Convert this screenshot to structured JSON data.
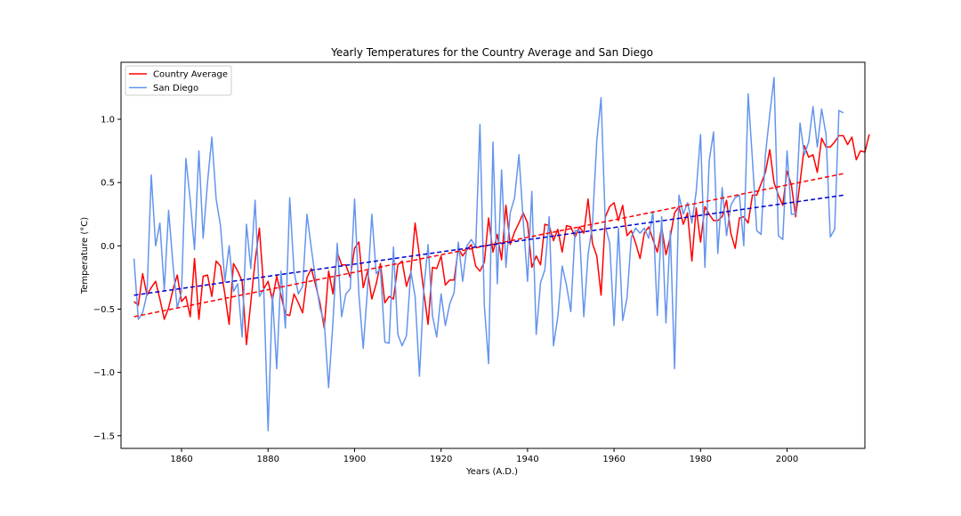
{
  "chart_data": {
    "type": "line",
    "title": "Yearly Temperatures for the Country Average and San Diego",
    "xlabel": "Years (A.D.)",
    "ylabel": "Temperature (°C)",
    "xlim": [
      1846,
      2018
    ],
    "ylim": [
      -1.6,
      1.45
    ],
    "xticks": [
      1860,
      1880,
      1900,
      1920,
      1940,
      1960,
      1980,
      2000
    ],
    "yticks": [
      -1.5,
      -1.0,
      -0.5,
      0.0,
      0.5,
      1.0
    ],
    "ytick_labels": [
      "−1.5",
      "−1.0",
      "−0.5",
      "0.0",
      "0.5",
      "1.0"
    ],
    "grid": false,
    "legend_position": "top-left",
    "x_start": 1849,
    "series": [
      {
        "name": "Country Average",
        "color": "#ff0000",
        "values": [
          -0.44,
          -0.47,
          -0.22,
          -0.39,
          -0.33,
          -0.28,
          -0.42,
          -0.58,
          -0.49,
          -0.35,
          -0.23,
          -0.44,
          -0.4,
          -0.56,
          -0.1,
          -0.58,
          -0.24,
          -0.23,
          -0.4,
          -0.12,
          -0.16,
          -0.38,
          -0.62,
          -0.14,
          -0.2,
          -0.28,
          -0.78,
          -0.45,
          -0.12,
          0.14,
          -0.34,
          -0.28,
          -0.43,
          -0.24,
          -0.39,
          -0.54,
          -0.55,
          -0.38,
          -0.45,
          -0.53,
          -0.25,
          -0.18,
          -0.31,
          -0.45,
          -0.65,
          -0.2,
          -0.38,
          -0.05,
          -0.15,
          -0.15,
          -0.25,
          -0.02,
          0.03,
          -0.33,
          -0.2,
          -0.42,
          -0.3,
          -0.14,
          -0.45,
          -0.4,
          -0.42,
          -0.15,
          -0.12,
          -0.32,
          -0.21,
          0.18,
          -0.08,
          -0.36,
          -0.62,
          -0.17,
          -0.18,
          -0.08,
          -0.31,
          -0.27,
          -0.27,
          -0.02,
          -0.08,
          -0.03,
          0.01,
          -0.16,
          -0.2,
          -0.13,
          0.22,
          -0.05,
          0.09,
          -0.11,
          0.32,
          0.01,
          0.11,
          0.18,
          0.26,
          0.18,
          -0.17,
          -0.08,
          -0.15,
          0.17,
          0.16,
          0.04,
          0.13,
          -0.05,
          0.16,
          0.15,
          0.07,
          0.15,
          0.1,
          0.37,
          0.02,
          -0.08,
          -0.39,
          0.23,
          0.31,
          0.34,
          0.2,
          0.32,
          0.08,
          0.12,
          0.02,
          -0.1,
          0.1,
          0.15,
          0.05,
          -0.05,
          0.15,
          -0.07,
          0.07,
          0.26,
          0.31,
          0.17,
          0.26,
          -0.12,
          0.3,
          0.03,
          0.31,
          0.25,
          0.2,
          0.2,
          0.23,
          0.36,
          0.1,
          -0.02,
          0.22,
          0.23,
          0.18,
          0.4,
          0.4,
          0.49,
          0.58,
          0.76,
          0.5,
          0.4,
          0.32,
          0.59,
          0.48,
          0.23,
          0.5,
          0.79,
          0.7,
          0.72,
          0.58,
          0.85,
          0.78,
          0.78,
          0.82,
          0.87,
          0.87,
          0.8,
          0.86,
          0.68,
          0.75,
          0.74,
          0.88
        ]
      },
      {
        "name": "San Diego",
        "color": "#6495ed",
        "values": [
          -0.1,
          -0.58,
          -0.53,
          -0.38,
          0.56,
          0.0,
          0.18,
          -0.35,
          0.28,
          -0.14,
          -0.49,
          -0.36,
          0.69,
          0.36,
          -0.03,
          0.75,
          0.06,
          0.5,
          0.86,
          0.37,
          0.16,
          -0.28,
          0.0,
          -0.36,
          -0.3,
          -0.72,
          0.17,
          -0.18,
          0.36,
          -0.4,
          -0.34,
          -1.46,
          -0.38,
          -0.97,
          -0.2,
          -0.65,
          0.38,
          -0.2,
          -0.38,
          -0.32,
          0.25,
          -0.02,
          -0.27,
          -0.49,
          -0.6,
          -1.12,
          -0.6,
          0.02,
          -0.56,
          -0.38,
          -0.34,
          0.37,
          -0.38,
          -0.81,
          -0.34,
          0.25,
          -0.22,
          -0.18,
          -0.76,
          -0.77,
          -0.01,
          -0.7,
          -0.79,
          -0.71,
          -0.2,
          -0.4,
          -1.03,
          -0.35,
          0.01,
          -0.55,
          -0.72,
          -0.38,
          -0.63,
          -0.46,
          -0.37,
          0.03,
          -0.28,
          0.0,
          0.05,
          -0.01,
          0.96,
          -0.47,
          -0.93,
          0.82,
          -0.3,
          0.6,
          -0.17,
          0.26,
          0.38,
          0.72,
          0.2,
          -0.28,
          0.43,
          -0.7,
          -0.29,
          -0.19,
          0.23,
          -0.79,
          -0.56,
          -0.16,
          -0.31,
          -0.52,
          0.12,
          0.12,
          -0.56,
          -0.07,
          0.17,
          0.83,
          1.17,
          0.15,
          0.02,
          -0.63,
          0.14,
          -0.59,
          -0.41,
          0.07,
          0.14,
          0.1,
          0.14,
          0.06,
          0.27,
          -0.55,
          0.23,
          -0.61,
          0.12,
          -0.97,
          0.4,
          0.25,
          0.34,
          0.18,
          0.43,
          0.88,
          -0.17,
          0.67,
          0.9,
          -0.06,
          0.46,
          0.08,
          0.32,
          0.38,
          0.4,
          0.0,
          1.2,
          0.68,
          0.12,
          0.09,
          0.72,
          1.04,
          1.33,
          0.08,
          0.05,
          0.75,
          0.25,
          0.25,
          0.97,
          0.72,
          0.82,
          1.1,
          0.78,
          1.08,
          0.88,
          0.07,
          0.13,
          1.07,
          1.05
        ]
      }
    ],
    "trendlines": [
      {
        "name": "",
        "color": "#ff0000",
        "style": "dashed",
        "x": [
          1849,
          2013
        ],
        "y": [
          -0.56,
          0.57
        ]
      },
      {
        "name": "",
        "color": "#0000cd",
        "style": "dashed",
        "x": [
          1849,
          2013
        ],
        "y": [
          -0.39,
          0.4
        ]
      }
    ]
  }
}
